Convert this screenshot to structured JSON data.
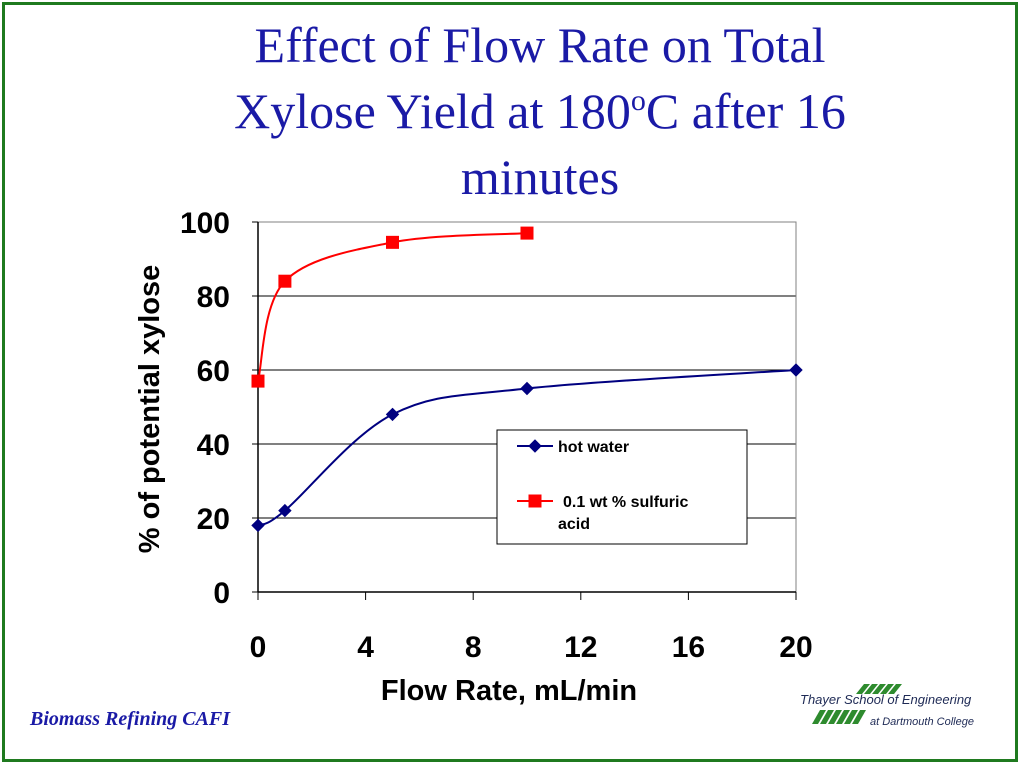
{
  "slide": {
    "title_line1": "Effect of Flow Rate on Total",
    "title_line2_pre": "Xylose Yield at 180",
    "title_line2_sup": "o",
    "title_line2_post": "C after 16",
    "title_line3": "minutes",
    "footer": "Biomass Refining CAFI",
    "logo_line1": "Thayer School of Engineering",
    "logo_line2": "at Dartmouth College",
    "border_color": "#1f7a1f",
    "title_color": "#1a1aa6"
  },
  "chart_data": {
    "type": "line",
    "xlabel": "Flow Rate, mL/min",
    "ylabel": "% of potential xylose",
    "xlim": [
      0,
      20
    ],
    "ylim": [
      0,
      100
    ],
    "xticks": [
      "0",
      "4",
      "8",
      "12",
      "16",
      "20"
    ],
    "yticks": [
      "0",
      "20",
      "40",
      "60",
      "80",
      "100"
    ],
    "grid": "horizontal",
    "legend_position": "lower-right",
    "series": [
      {
        "name": "hot water",
        "color": "#000080",
        "marker": "diamond",
        "x": [
          0,
          1,
          5,
          10,
          20
        ],
        "y": [
          18,
          22,
          48,
          55,
          60
        ]
      },
      {
        "name": "0.1 wt % sulfuric acid",
        "color": "#ff0000",
        "marker": "square",
        "x": [
          0,
          1,
          5,
          10
        ],
        "y": [
          57,
          84,
          94.5,
          97
        ]
      }
    ]
  }
}
